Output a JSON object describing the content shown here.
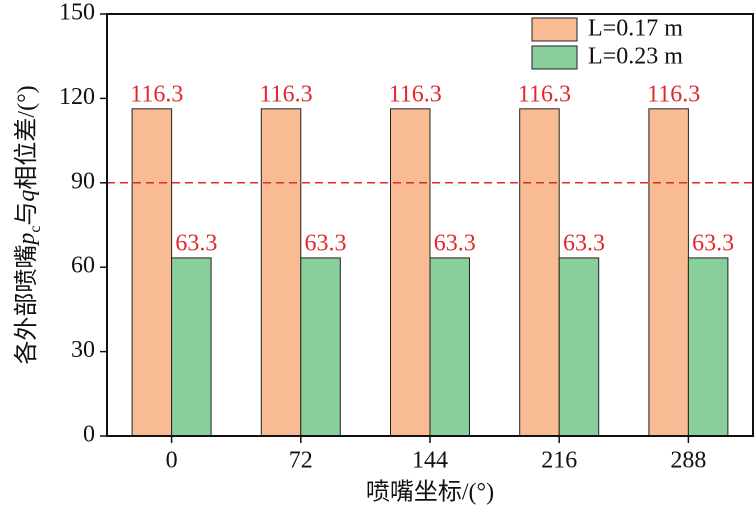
{
  "chart_data": {
    "type": "bar",
    "categories": [
      "0",
      "72",
      "144",
      "216",
      "288"
    ],
    "xlabel": "喷嘴坐标/(°)",
    "ylabel_parts": [
      "各外部喷嘴",
      "p",
      "c",
      "与",
      "q",
      "相位差/(°)"
    ],
    "series": [
      {
        "name": "L=0.17 m",
        "color": "#f8bb93",
        "values": [
          116.3,
          116.3,
          116.3,
          116.3,
          116.3
        ]
      },
      {
        "name": "L=0.23 m",
        "color": "#88cf9c",
        "values": [
          63.3,
          63.3,
          63.3,
          63.3,
          63.3
        ]
      }
    ],
    "value_label_color": "#e0282e",
    "ref_line": {
      "value": 90,
      "color": "#e0282e",
      "dashed": true
    },
    "ylim": [
      0,
      150
    ],
    "yticks": [
      0,
      30,
      60,
      90,
      120,
      150
    ],
    "grid": false,
    "legend": "upper right"
  }
}
